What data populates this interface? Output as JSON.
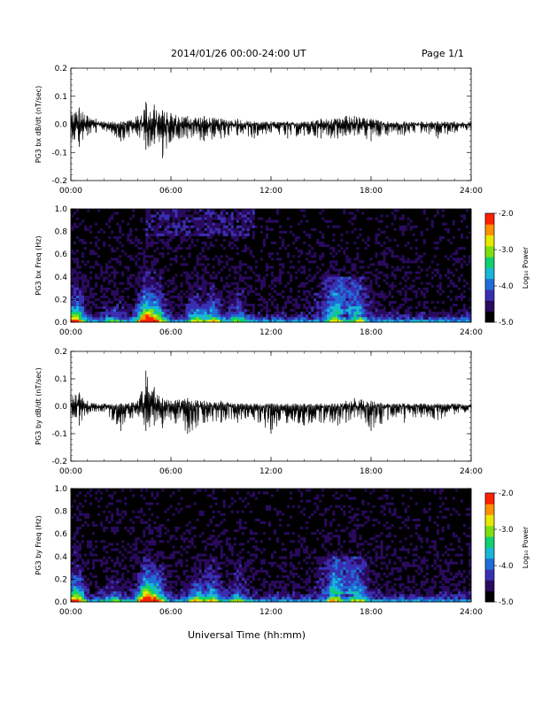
{
  "header": {
    "title": "2014/01/26  00:00-24:00 UT",
    "page": "Page 1/1"
  },
  "footer": {
    "xlabel": "Universal Time (hh:mm)"
  },
  "colorbar": {
    "label": "Log₁₀ Power",
    "ticks": [
      "-2.0",
      "-3.0",
      "-4.0",
      "-5.0"
    ],
    "tick_values": [
      -2.0,
      -3.0,
      -4.0,
      -5.0
    ],
    "range": [
      -5.0,
      -2.0
    ],
    "colors": [
      "#000000",
      "#2a0a5e",
      "#3a2fb0",
      "#1f6dd6",
      "#18b7d8",
      "#10d070",
      "#7ee010",
      "#e8e800",
      "#ff9000",
      "#ff2000"
    ]
  },
  "chart_data": [
    {
      "type": "line",
      "ylabel": "PG3 bx dB/dt (nT/sec)",
      "ylim": [
        -0.2,
        0.2
      ],
      "yticks": [
        -0.2,
        -0.1,
        0.0,
        0.1,
        0.2
      ],
      "ytick_labels": [
        "-0.2",
        "-0.1",
        "0.0",
        "0.1",
        "0.2"
      ],
      "xlim": [
        0,
        24
      ],
      "xtick_labels": [
        "00:00",
        "06:00",
        "12:00",
        "18:00",
        "24:00"
      ],
      "x": [
        0,
        0.5,
        1.0,
        1.5,
        2.0,
        3.0,
        4.0,
        4.5,
        5.0,
        5.5,
        6.0,
        7.0,
        8.0,
        9.0,
        10.0,
        11.0,
        12.0,
        13.0,
        14.0,
        15.0,
        16.0,
        16.5,
        17.0,
        18.0,
        19.0,
        20.0,
        21.0,
        22.0,
        23.0,
        24.0
      ],
      "y_max": [
        0.05,
        0.06,
        0.03,
        0.02,
        0.01,
        0.01,
        0.03,
        0.08,
        0.07,
        0.05,
        0.04,
        0.03,
        0.03,
        0.02,
        0.02,
        0.01,
        0.01,
        0.01,
        0.01,
        0.02,
        0.02,
        0.03,
        0.03,
        0.02,
        0.01,
        0.01,
        0.01,
        0.01,
        0.01,
        0.01
      ],
      "y_min": [
        -0.05,
        -0.08,
        -0.04,
        -0.03,
        -0.02,
        -0.06,
        -0.04,
        -0.09,
        -0.07,
        -0.12,
        -0.06,
        -0.05,
        -0.06,
        -0.05,
        -0.04,
        -0.05,
        -0.03,
        -0.05,
        -0.04,
        -0.05,
        -0.05,
        -0.04,
        -0.04,
        -0.06,
        -0.04,
        -0.04,
        -0.03,
        -0.05,
        -0.03,
        -0.02
      ]
    },
    {
      "type": "heatmap",
      "ylabel": "PG3 bx Freq (Hz)",
      "ylim": [
        0.0,
        1.0
      ],
      "yticks": [
        0.0,
        0.2,
        0.4,
        0.6,
        0.8,
        1.0
      ],
      "ytick_labels": [
        "0.0",
        "0.2",
        "0.4",
        "0.6",
        "0.8",
        "1.0"
      ],
      "xlim": [
        0,
        24
      ],
      "xtick_labels": [
        "00:00",
        "06:00",
        "12:00",
        "18:00",
        "24:00"
      ],
      "zlim": [
        -5.0,
        -2.0
      ]
    },
    {
      "type": "line",
      "ylabel": "PG3 by dB/dt (nT/sec)",
      "ylim": [
        -0.2,
        0.2
      ],
      "yticks": [
        -0.2,
        -0.1,
        0.0,
        0.1,
        0.2
      ],
      "ytick_labels": [
        "-0.2",
        "-0.1",
        "0.0",
        "0.1",
        "0.2"
      ],
      "xlim": [
        0,
        24
      ],
      "xtick_labels": [
        "00:00",
        "06:00",
        "12:00",
        "18:00",
        "24:00"
      ],
      "x": [
        0,
        0.5,
        1.0,
        1.5,
        2.0,
        3.0,
        4.0,
        4.5,
        5.0,
        5.5,
        6.0,
        7.0,
        8.0,
        9.0,
        10.0,
        11.0,
        12.0,
        13.0,
        14.0,
        15.0,
        16.0,
        16.5,
        17.0,
        18.0,
        19.0,
        20.0,
        21.0,
        22.0,
        23.0,
        24.0
      ],
      "y_max": [
        0.04,
        0.05,
        0.02,
        0.01,
        0.01,
        0.01,
        0.02,
        0.13,
        0.07,
        0.03,
        0.02,
        0.03,
        0.02,
        0.02,
        0.01,
        0.01,
        0.01,
        0.01,
        0.01,
        0.01,
        0.01,
        0.02,
        0.03,
        0.02,
        0.01,
        0.01,
        0.01,
        0.01,
        0.01,
        0.01
      ],
      "y_min": [
        -0.04,
        -0.07,
        -0.03,
        -0.02,
        -0.02,
        -0.09,
        -0.03,
        -0.09,
        -0.07,
        -0.08,
        -0.05,
        -0.1,
        -0.06,
        -0.06,
        -0.06,
        -0.05,
        -0.1,
        -0.06,
        -0.07,
        -0.06,
        -0.07,
        -0.06,
        -0.04,
        -0.09,
        -0.05,
        -0.06,
        -0.04,
        -0.05,
        -0.03,
        -0.02
      ]
    },
    {
      "type": "heatmap",
      "ylabel": "PG3 by Freq (Hz)",
      "ylim": [
        0.0,
        1.0
      ],
      "yticks": [
        0.0,
        0.2,
        0.4,
        0.6,
        0.8,
        1.0
      ],
      "ytick_labels": [
        "0.0",
        "0.2",
        "0.4",
        "0.6",
        "0.8",
        "1.0"
      ],
      "xlim": [
        0,
        24
      ],
      "xtick_labels": [
        "00:00",
        "06:00",
        "12:00",
        "18:00",
        "24:00"
      ],
      "zlim": [
        -5.0,
        -2.0
      ]
    }
  ]
}
